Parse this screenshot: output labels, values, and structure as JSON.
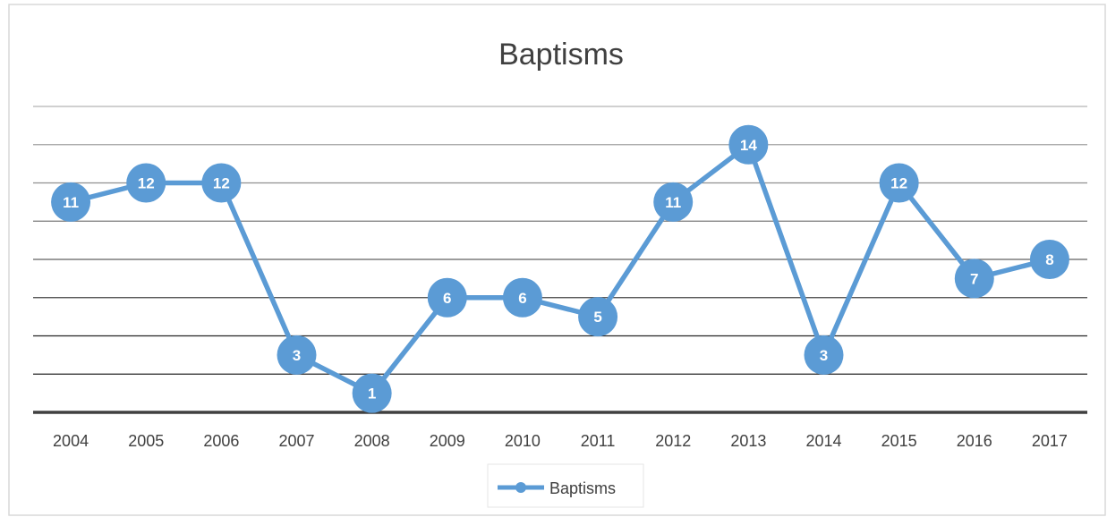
{
  "chart_data": {
    "type": "line",
    "title": "Baptisms",
    "xlabel": "",
    "ylabel": "",
    "categories": [
      "2004",
      "2005",
      "2006",
      "2007",
      "2008",
      "2009",
      "2010",
      "2011",
      "2012",
      "2013",
      "2014",
      "2015",
      "2016",
      "2017"
    ],
    "series": [
      {
        "name": "Baptisms",
        "values": [
          11,
          12,
          12,
          3,
          1,
          6,
          6,
          5,
          11,
          14,
          3,
          12,
          7,
          8
        ],
        "color": "#5B9BD5"
      }
    ],
    "ylim": [
      0,
      16
    ],
    "grid": true,
    "y_tick_labels_shown": false,
    "data_labels": true,
    "legend": "bottom"
  }
}
